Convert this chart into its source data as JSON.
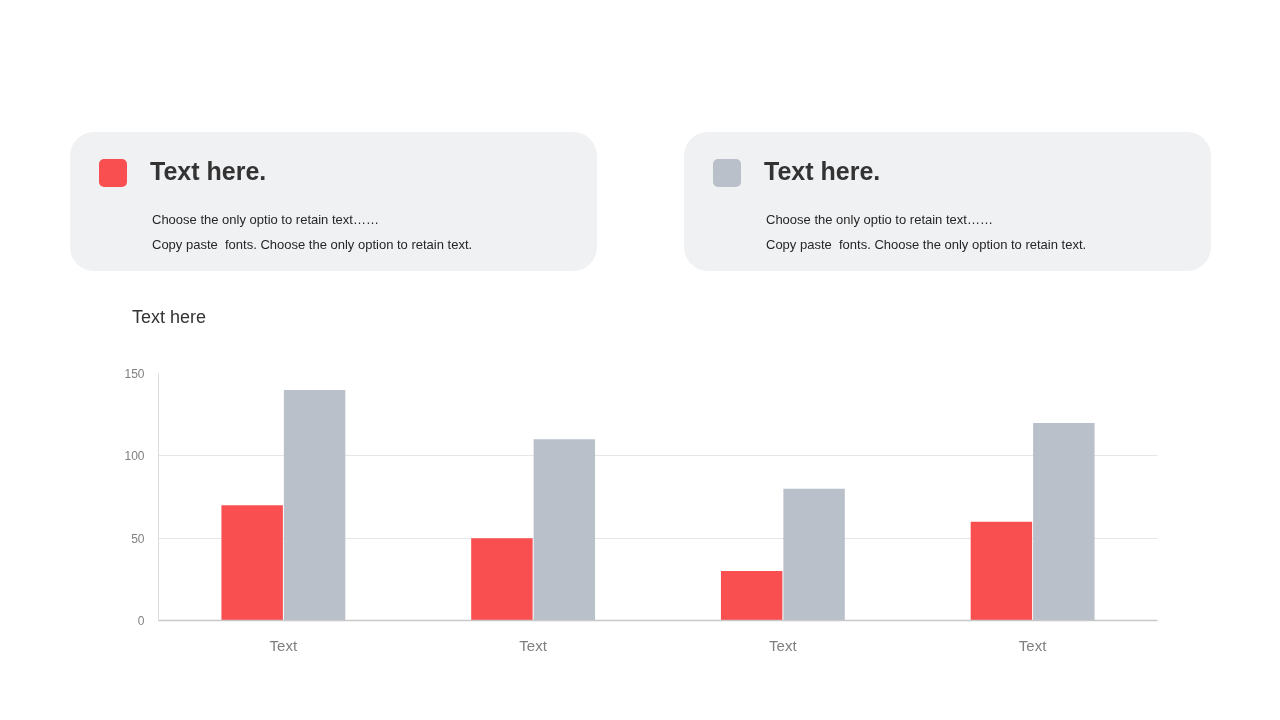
{
  "chart_data": {
    "type": "bar",
    "title": "Text here",
    "categories": [
      "Text",
      "Text",
      "Text",
      "Text"
    ],
    "series": [
      {
        "name": "Text here.",
        "color": "#f94f50",
        "values": [
          70,
          50,
          30,
          60
        ]
      },
      {
        "name": "Text here.",
        "color": "#b9c0ca",
        "values": [
          140,
          110,
          80,
          120
        ]
      }
    ],
    "ylim": [
      0,
      150
    ],
    "yticks": [
      0,
      50,
      100,
      150
    ],
    "grid": "y",
    "legend": "top",
    "annotations": [
      "Choose the only optio to retain text……",
      "Copy paste  fonts. Choose the only option to retain text.",
      "Choose the only optio to retain text……",
      "Copy paste  fonts. Choose the only option to retain text."
    ]
  }
}
